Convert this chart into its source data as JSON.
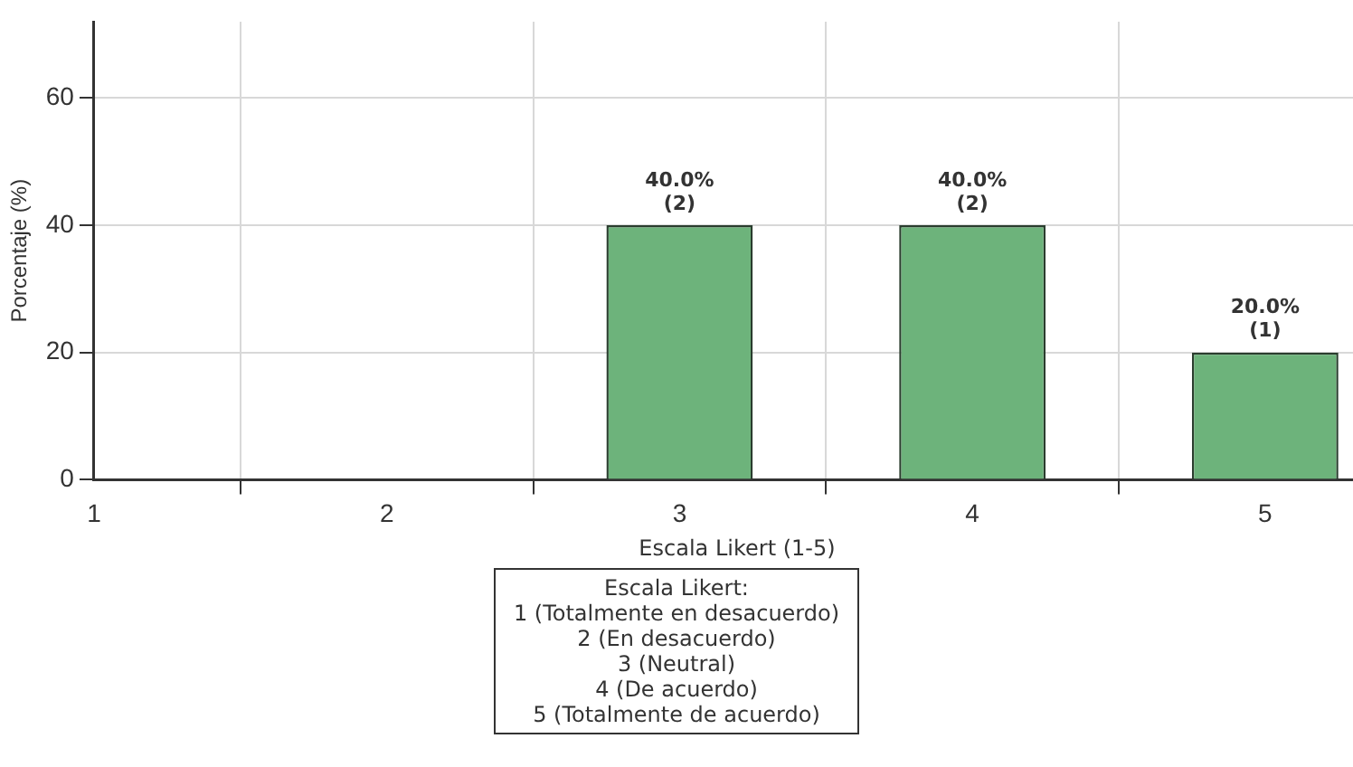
{
  "chart_data": {
    "type": "bar",
    "xlabel": "Escala Likert (1-5)",
    "ylabel": "Porcentaje (%)",
    "x": [
      3,
      4,
      5
    ],
    "values": [
      40,
      40,
      20
    ],
    "color": "#6db37b",
    "value_labels": [
      "40.0%\n(2)",
      "40.0%\n(2)",
      "20.0%\n(1)"
    ],
    "xlim": [
      1,
      5.3
    ],
    "xticks": [
      1,
      2,
      3,
      4,
      5
    ],
    "ylim": [
      0,
      72
    ],
    "yticks": [
      0,
      20,
      40,
      60
    ],
    "grid": true,
    "annotations": [
      "Escala Likert:\n1 (Totalmente en desacuerdo)\n2 (En desacuerdo)\n3 (Neutral)\n4 (De acuerdo)\n5 (Totalmente de acuerdo)"
    ]
  }
}
